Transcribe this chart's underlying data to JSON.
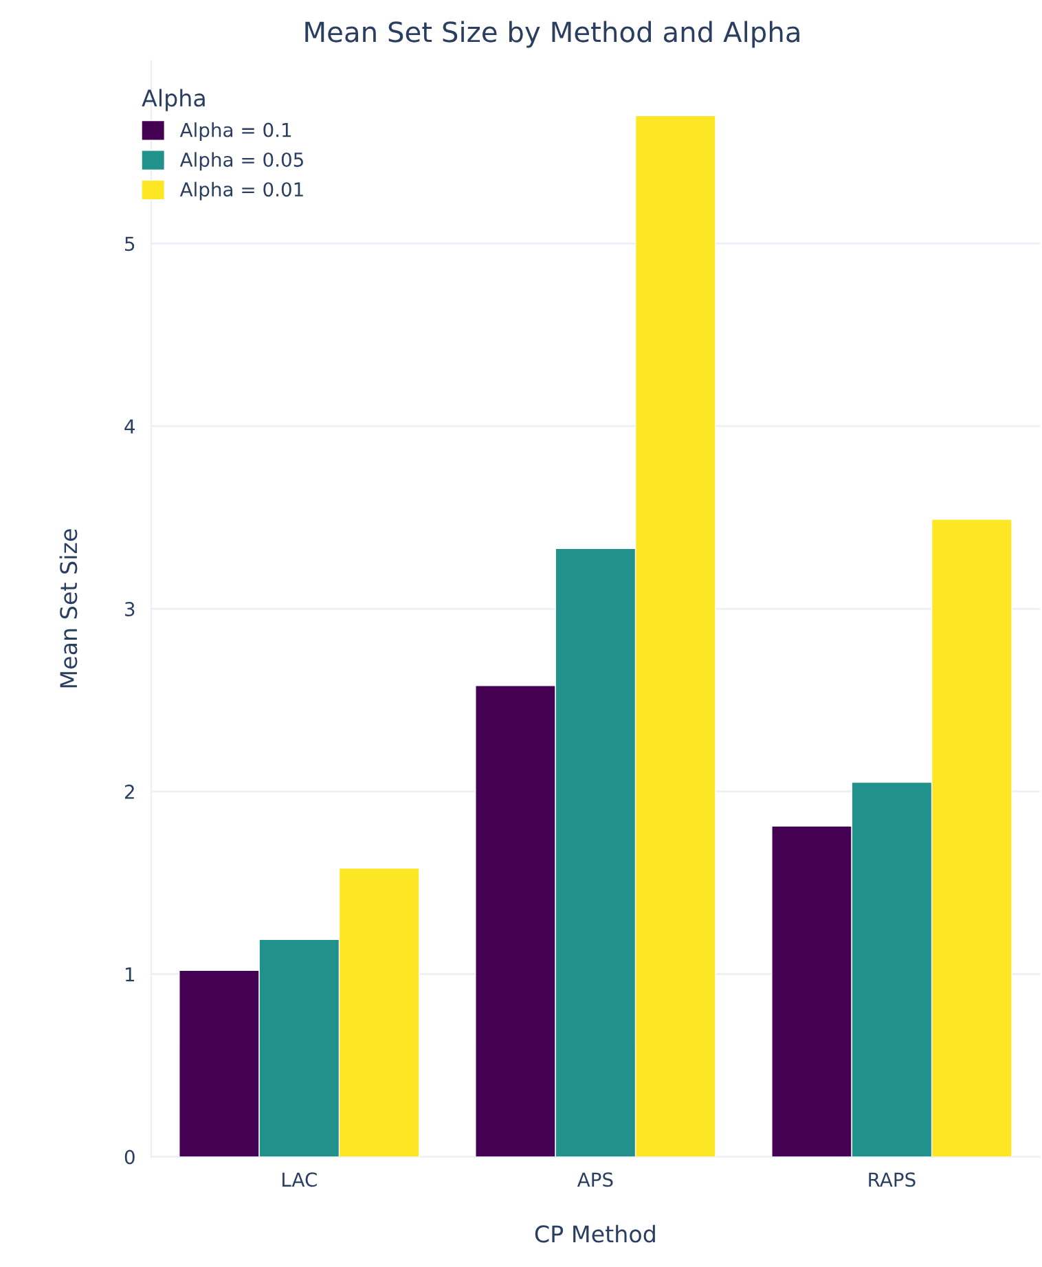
{
  "chart_data": {
    "type": "bar",
    "title": "Mean Set Size by Method and Alpha",
    "xlabel": "CP Method",
    "ylabel": "Mean Set Size",
    "legend_title": "Alpha",
    "categories": [
      "LAC",
      "APS",
      "RAPS"
    ],
    "series": [
      {
        "name": "Alpha = 0.1",
        "color": "#440154",
        "values": [
          1.02,
          2.58,
          1.81
        ]
      },
      {
        "name": "Alpha = 0.05",
        "color": "#21918c",
        "values": [
          1.19,
          3.33,
          2.05
        ]
      },
      {
        "name": "Alpha = 0.01",
        "color": "#fde725",
        "values": [
          1.58,
          5.7,
          3.49
        ]
      }
    ],
    "ylim": [
      0,
      6
    ],
    "yticks": [
      0,
      1,
      2,
      3,
      4,
      5
    ],
    "grid": "y",
    "legend": "top left"
  }
}
